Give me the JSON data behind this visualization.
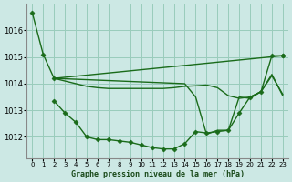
{
  "title": "Graphe pression niveau de la mer (hPa)",
  "bg_color": "#cce8e4",
  "grid_color": "#99ccbb",
  "line_color": "#1a6b1a",
  "xlim": [
    -0.5,
    23.5
  ],
  "ylim": [
    1011.2,
    1017.0
  ],
  "yticks": [
    1012,
    1013,
    1014,
    1015,
    1016
  ],
  "xticks": [
    0,
    1,
    2,
    3,
    4,
    5,
    6,
    7,
    8,
    9,
    10,
    11,
    12,
    13,
    14,
    15,
    16,
    17,
    18,
    19,
    20,
    21,
    22,
    23
  ],
  "series": [
    {
      "x": [
        0,
        1,
        2,
        23
      ],
      "y": [
        1016.65,
        1015.1,
        1014.2,
        1015.05
      ],
      "marker": "D",
      "ms": 2.5,
      "lw": 1.0
    },
    {
      "x": [
        2,
        3,
        4,
        5,
        6,
        7,
        8,
        9,
        10,
        11,
        12,
        13,
        14,
        15,
        16,
        17,
        18,
        19,
        20,
        21,
        22,
        23
      ],
      "y": [
        1014.2,
        1014.1,
        1014.0,
        1013.9,
        1013.85,
        1013.82,
        1013.82,
        1013.82,
        1013.82,
        1013.82,
        1013.82,
        1013.85,
        1013.9,
        1013.92,
        1013.95,
        1013.85,
        1013.55,
        1013.45,
        1013.5,
        1013.7,
        1014.3,
        1013.6
      ],
      "marker": null,
      "ms": 0,
      "lw": 1.0
    },
    {
      "x": [
        2,
        3,
        4,
        5,
        6,
        7,
        8,
        9,
        10,
        11,
        12,
        13,
        14,
        15,
        16,
        17,
        18,
        19,
        20,
        21,
        22,
        23
      ],
      "y": [
        1013.35,
        1012.9,
        1012.55,
        1012.0,
        1011.9,
        1011.9,
        1011.85,
        1011.8,
        1011.7,
        1011.6,
        1011.55,
        1011.55,
        1011.75,
        1012.2,
        1012.15,
        1012.2,
        1012.25,
        1012.9,
        1013.5,
        1013.7,
        1015.05,
        1015.05
      ],
      "marker": "D",
      "ms": 2.5,
      "lw": 1.0
    },
    {
      "x": [
        2,
        14,
        15,
        16,
        17,
        18,
        19,
        20,
        21,
        22,
        23
      ],
      "y": [
        1014.2,
        1014.0,
        1013.5,
        1012.1,
        1012.25,
        1012.25,
        1013.5,
        1013.45,
        1013.7,
        1014.35,
        1013.55
      ],
      "marker": null,
      "ms": 0,
      "lw": 1.0
    }
  ]
}
